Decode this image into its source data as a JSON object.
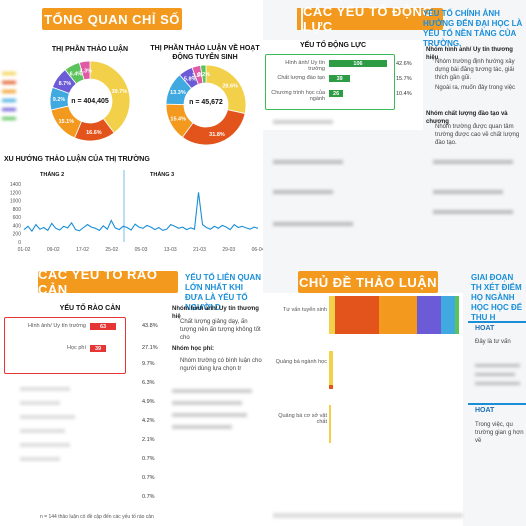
{
  "q1": {
    "banner": "TỔNG QUAN CHỈ SỐ",
    "donut1": {
      "title": "THỊ PHẦN THẢO LUẬN",
      "center": "n = 404,405",
      "slices": [
        {
          "label": "39.7%",
          "value": 39.7,
          "color": "#f2d04a"
        },
        {
          "label": "16.6%",
          "value": 16.6,
          "color": "#e2541c"
        },
        {
          "label": "15.1%",
          "value": 15.1,
          "color": "#f39a1e"
        },
        {
          "label": "9.2%",
          "value": 9.2,
          "color": "#3fa9e0"
        },
        {
          "label": "8.7%",
          "value": 8.7,
          "color": "#6b5bd6"
        },
        {
          "label": "6.4%",
          "value": 6.4,
          "color": "#5cc35c"
        },
        {
          "label": "4.3%",
          "value": 4.3,
          "color": "#e05aa5"
        }
      ]
    },
    "donut2": {
      "title": "THỊ PHẦN THẢO LUẬN VỀ HOẠT ĐỘNG TUYỂN SINH",
      "center": "n = 45,672",
      "slices": [
        {
          "label": "28.6%",
          "value": 28.6,
          "color": "#f2d04a"
        },
        {
          "label": "31.8%",
          "value": 31.8,
          "color": "#e2541c"
        },
        {
          "label": "15.4%",
          "value": 15.4,
          "color": "#f39a1e"
        },
        {
          "label": "13.3%",
          "value": 13.3,
          "color": "#3fa9e0"
        },
        {
          "label": "5.8%",
          "value": 5.8,
          "color": "#6b5bd6"
        },
        {
          "label": "3.5%",
          "value": 3.5,
          "color": "#e05aa5"
        },
        {
          "label": "2.2%",
          "value": 2.2,
          "color": "#5cc35c"
        }
      ]
    },
    "trend": {
      "title": "XU HƯỚNG THẢO LUẬN CỦA THỊ TRƯỜNG",
      "month_a": "THÁNG 2",
      "month_b": "THÁNG 3",
      "y_ticks": [
        "1400",
        "1200",
        "1000",
        "800",
        "600",
        "400",
        "200",
        "0"
      ],
      "x_ticks": [
        "01-02",
        "09-02",
        "17-02",
        "25-02",
        "05-03",
        "13-03",
        "21-03",
        "29-03",
        "06-04"
      ],
      "values": [
        300,
        380,
        260,
        420,
        310,
        350,
        280,
        450,
        330,
        290,
        380,
        340,
        460,
        300,
        270,
        350,
        420,
        360,
        330,
        280,
        390,
        310,
        520,
        340,
        300,
        380,
        350,
        290,
        430,
        360,
        330,
        400,
        360,
        300,
        350,
        280,
        310,
        420,
        380,
        330,
        360,
        300,
        340,
        310,
        1200,
        420,
        350,
        310,
        380,
        330,
        400,
        360,
        300,
        420,
        350,
        380,
        340,
        310,
        360,
        330
      ]
    }
  },
  "q2": {
    "banner": "CÁC YẾU TỐ ĐỘNG LỰC",
    "heading": "YẾU TỐ CHÍNH ẢNH HƯỞNG ĐẾN ĐẠI HỌC LÀ YẾU TỐ NỀN TẢNG CỦA TRƯỜNG.",
    "chart_title": "YẾU TỐ ĐỘNG LỰC",
    "bars": [
      {
        "label": "Hình ảnh/ Uy tín trường",
        "value": 106,
        "pct": "42.6%"
      },
      {
        "label": "Chất lượng đào tạo",
        "value": 39,
        "pct": "15.7%"
      },
      {
        "label": "Chương trình học của ngành",
        "value": 26,
        "pct": "10.4%"
      }
    ],
    "blurred_pcts": [
      "",
      "",
      ""
    ],
    "bullet1_head": "Nhóm hình ảnh/ Uy tín thương hiệu",
    "bullet1_text": "Nhóm trường định hướng xây dựng bài đăng tương tác, giải thích gần gũi.",
    "bullet1b_text": "Ngoài ra, muốn đảy trong việc",
    "bullet2_head": "Nhóm chất lượng đào tạo và chương",
    "bullet2_text": "Nhóm trường được quan tâm trường được cao về chất lượng đào tạo."
  },
  "q3": {
    "banner": "CÁC YẾU TỐ RÀO CẢN",
    "heading": "YẾU TỐ LIÊN QUAN LỚN NHẤT KHI ĐƯA LÀ YẾU TỐ NGƯỜI D",
    "chart_title": "YẾU TỐ RÀO CẢN",
    "bars": [
      {
        "label": "Hình ảnh/ Uy tín trường",
        "value": 63,
        "pct": "43.8%"
      },
      {
        "label": "Học phí",
        "value": 39,
        "pct": "27.1%"
      }
    ],
    "other_pcts": [
      "9.7%",
      "6.3%",
      "4.9%",
      "4.2%",
      "2.1%",
      "0.7%",
      "0.7%",
      "0.7%"
    ],
    "bullet1_head": "Nhóm hình ảnh/ Uy tín thương hiệ",
    "bullet1_text": "Chất lượng giảng dạy, ấn tượng nên ấn tượng không tốt cho",
    "bullet2_head": "Nhóm học phí:",
    "bullet2_text": "Nhóm trường có bình luận cho người dùng lựa chọn tr",
    "footnote": "n = 144 thảo luận có đề cập đến các yếu tố rào cản"
  },
  "q4": {
    "banner": "CHỦ ĐỀ THẢO LUẬN",
    "heading": "GIAI ĐOẠN TH XÉT ĐIỂM HỌ NGÀNH HỌC HỌC ĐỂ THU H",
    "rows": [
      {
        "label": "Tư vấn tuyển sinh"
      },
      {
        "label": "Quảng bá ngành học"
      },
      {
        "label": "Quảng bá cơ sở vật chất"
      }
    ],
    "side1": "HOAT",
    "side1_text": "Đây là tư vấn",
    "side2": "HOAT",
    "side2_text": "Trong việc, qu trường gian g hơn về"
  }
}
